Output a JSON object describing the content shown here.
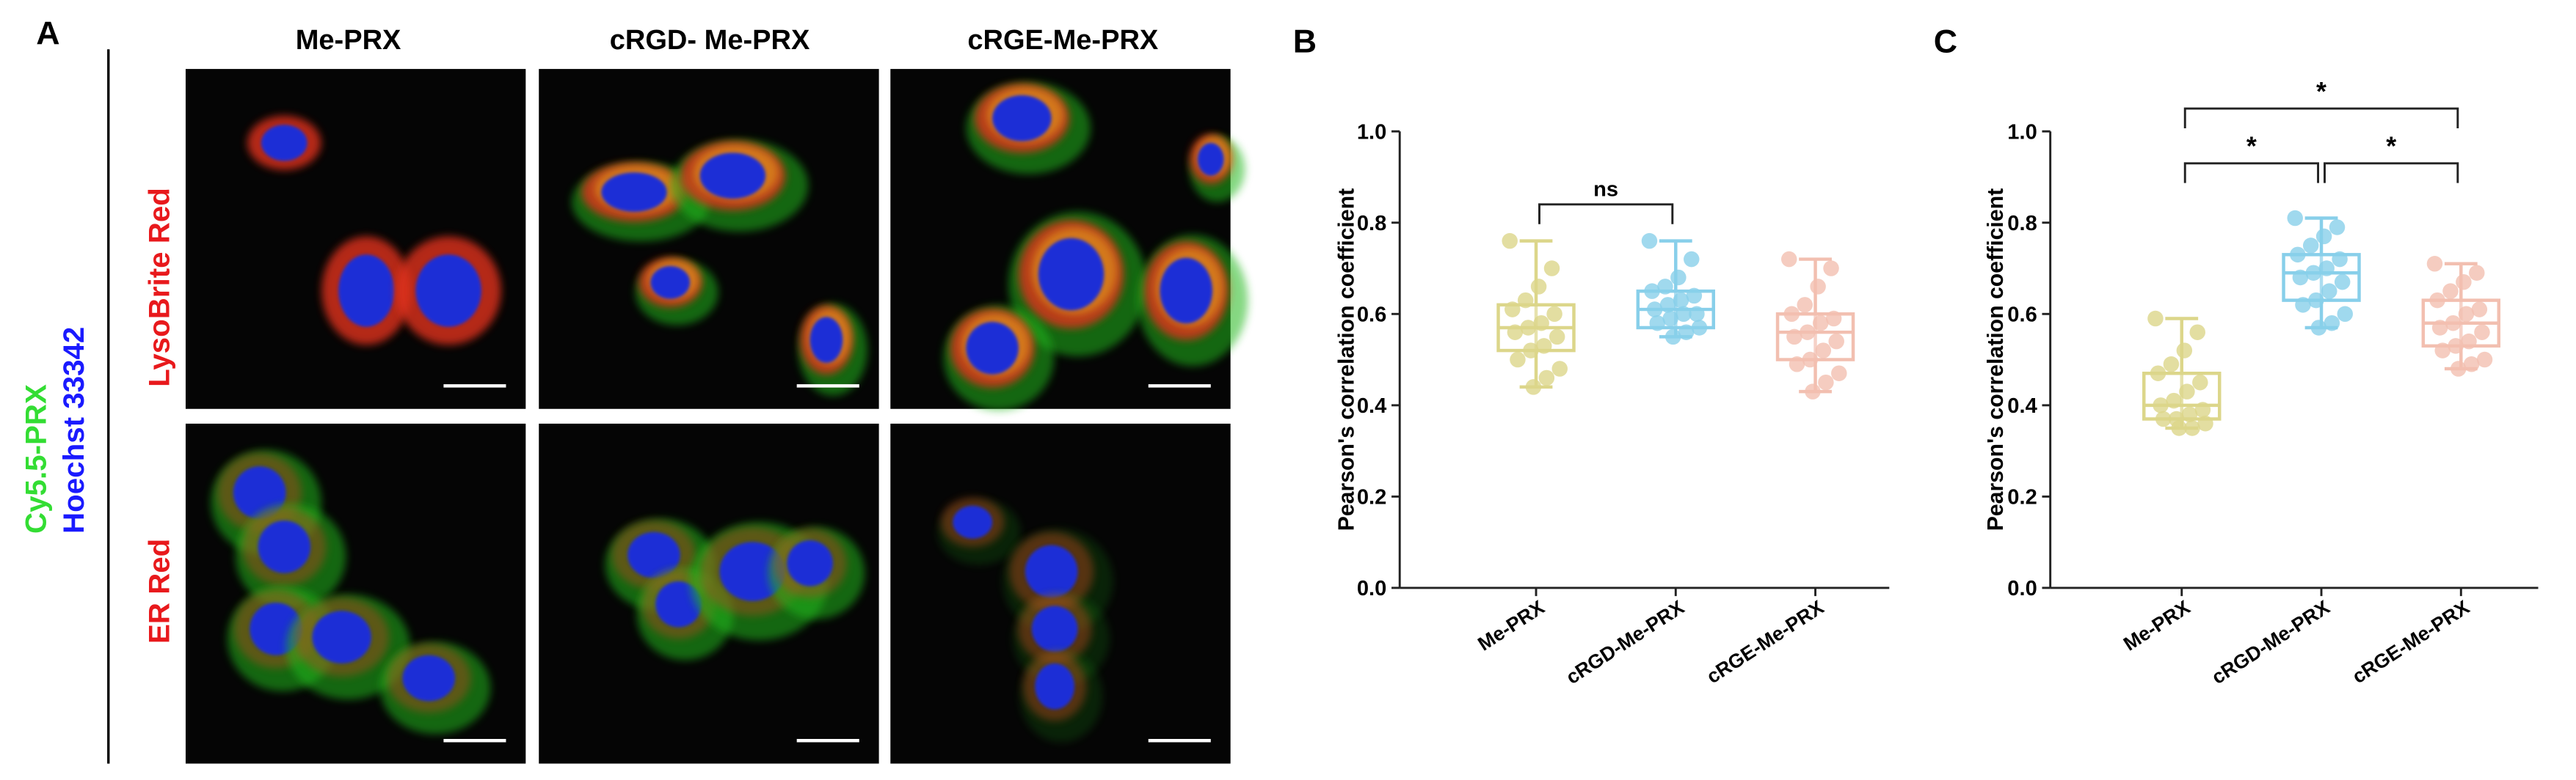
{
  "panel_a": {
    "label": "A",
    "columns": [
      "Me-PRX",
      "cRGD- Me-PRX",
      "cRGE-Me-PRX"
    ],
    "stain_labels": [
      "Cy5.5-PRX",
      "Hoechst 33342"
    ],
    "rows": [
      "LysoBrite Red",
      "ER Red"
    ]
  },
  "chart_data": [
    {
      "type": "box",
      "panel_label": "B",
      "ylabel": "Pearson's correlation  coefficient",
      "categories": [
        "Me-PRX",
        "cRGD-Me-PRX",
        "cRGE-Me-PRX"
      ],
      "colors": [
        "#dcd68a",
        "#88cfea",
        "#f2bfb0"
      ],
      "ylim": [
        0,
        1
      ],
      "yticks": [
        {
          "value": 0,
          "label": "0.0"
        },
        0.2,
        0.4,
        0.6,
        0.8,
        {
          "value": 1,
          "label": "1.0"
        }
      ],
      "boxes": [
        {
          "min": 0.44,
          "q1": 0.52,
          "median": 0.57,
          "q3": 0.62,
          "max": 0.76,
          "points": [
            0.76,
            0.7,
            0.66,
            0.63,
            0.61,
            0.6,
            0.58,
            0.57,
            0.56,
            0.55,
            0.53,
            0.52,
            0.5,
            0.48,
            0.46,
            0.44
          ]
        },
        {
          "min": 0.55,
          "q1": 0.57,
          "median": 0.61,
          "q3": 0.65,
          "max": 0.76,
          "points": [
            0.76,
            0.72,
            0.68,
            0.66,
            0.65,
            0.64,
            0.63,
            0.62,
            0.61,
            0.6,
            0.6,
            0.59,
            0.58,
            0.57,
            0.56,
            0.55
          ]
        },
        {
          "min": 0.43,
          "q1": 0.5,
          "median": 0.56,
          "q3": 0.6,
          "max": 0.72,
          "points": [
            0.72,
            0.7,
            0.66,
            0.62,
            0.6,
            0.59,
            0.58,
            0.56,
            0.55,
            0.54,
            0.52,
            0.5,
            0.49,
            0.47,
            0.45,
            0.43
          ]
        }
      ],
      "brackets": [
        {
          "label": "ns",
          "from": "Me-PRX",
          "to": "cRGD-Me-PRX",
          "y": 0.84
        }
      ]
    },
    {
      "type": "box",
      "panel_label": "C",
      "ylabel": "Pearson's correlation  coefficient",
      "categories": [
        "Me-PRX",
        "cRGD-Me-PRX",
        "cRGE-Me-PRX"
      ],
      "colors": [
        "#dcd68a",
        "#88cfea",
        "#f2bfb0"
      ],
      "ylim": [
        0,
        1
      ],
      "yticks": [
        {
          "value": 0,
          "label": "0.0"
        },
        0.2,
        0.4,
        0.6,
        0.8,
        {
          "value": 1,
          "label": "1.0"
        }
      ],
      "boxes": [
        {
          "min": 0.35,
          "q1": 0.37,
          "median": 0.4,
          "q3": 0.47,
          "max": 0.59,
          "points": [
            0.59,
            0.56,
            0.52,
            0.49,
            0.47,
            0.45,
            0.43,
            0.41,
            0.4,
            0.39,
            0.38,
            0.37,
            0.37,
            0.36,
            0.35,
            0.35
          ]
        },
        {
          "min": 0.57,
          "q1": 0.63,
          "median": 0.69,
          "q3": 0.73,
          "max": 0.81,
          "points": [
            0.81,
            0.79,
            0.77,
            0.75,
            0.73,
            0.72,
            0.7,
            0.69,
            0.68,
            0.67,
            0.65,
            0.63,
            0.62,
            0.6,
            0.58,
            0.57
          ]
        },
        {
          "min": 0.48,
          "q1": 0.53,
          "median": 0.58,
          "q3": 0.63,
          "max": 0.71,
          "points": [
            0.71,
            0.69,
            0.67,
            0.65,
            0.63,
            0.61,
            0.6,
            0.58,
            0.57,
            0.56,
            0.54,
            0.53,
            0.52,
            0.5,
            0.49,
            0.48
          ]
        }
      ],
      "brackets": [
        {
          "label": "*",
          "from": "Me-PRX",
          "to": "cRGE-Me-PRX",
          "y": 1.05
        },
        {
          "label": "*",
          "from": "Me-PRX",
          "to": "cRGD-Me-PRX",
          "y": 0.93
        },
        {
          "label": "*",
          "from": "cRGD-Me-PRX",
          "to": "cRGE-Me-PRX",
          "y": 0.93
        }
      ]
    }
  ]
}
